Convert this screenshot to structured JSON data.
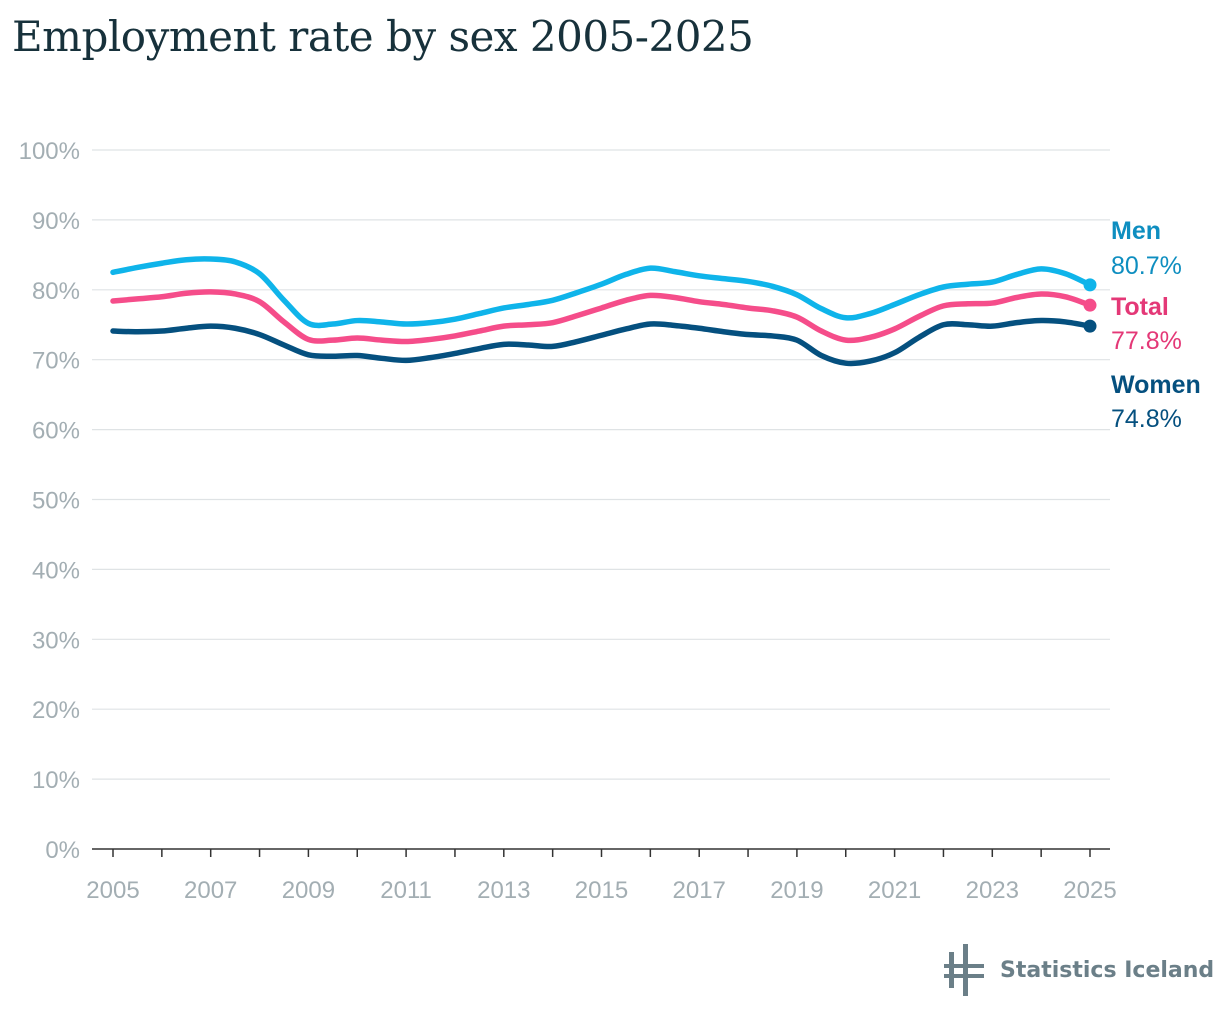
{
  "chart_data": {
    "type": "line",
    "title": "Employment rate by sex 2005-2025",
    "xlabel": "",
    "ylabel": "",
    "xlim": [
      2005,
      2025
    ],
    "ylim": [
      0,
      100
    ],
    "y_ticks": [
      "0%",
      "10%",
      "20%",
      "30%",
      "40%",
      "50%",
      "60%",
      "70%",
      "80%",
      "90%",
      "100%"
    ],
    "x_ticks": [
      "2005",
      "2007",
      "2009",
      "2011",
      "2013",
      "2015",
      "2017",
      "2019",
      "2021",
      "2023",
      "2025"
    ],
    "grid": true,
    "series": [
      {
        "name": "Men",
        "end_label": "80.7%",
        "color": "#0fb4ea",
        "label_color": "#0e8ec0",
        "x": [
          2005,
          2005.5,
          2006,
          2006.5,
          2007,
          2007.5,
          2008,
          2008.5,
          2009,
          2009.5,
          2010,
          2010.5,
          2011,
          2011.5,
          2012,
          2012.5,
          2013,
          2013.5,
          2014,
          2014.5,
          2015,
          2015.5,
          2016,
          2016.5,
          2017,
          2017.5,
          2018,
          2018.5,
          2019,
          2019.5,
          2020,
          2020.5,
          2021,
          2021.5,
          2022,
          2022.5,
          2023,
          2023.5,
          2024,
          2024.5,
          2025
        ],
        "values": [
          82.5,
          83.2,
          83.8,
          84.3,
          84.4,
          84.0,
          82.3,
          78.5,
          75.2,
          75.1,
          75.6,
          75.4,
          75.1,
          75.3,
          75.8,
          76.6,
          77.4,
          77.9,
          78.5,
          79.6,
          80.8,
          82.2,
          83.1,
          82.6,
          82.0,
          81.6,
          81.2,
          80.5,
          79.3,
          77.3,
          76.0,
          76.6,
          77.9,
          79.3,
          80.4,
          80.8,
          81.1,
          82.2,
          83.0,
          82.3,
          80.7
        ]
      },
      {
        "name": "Total",
        "end_label": "77.8%",
        "color": "#f54d8a",
        "label_color": "#e43877",
        "x": [
          2005,
          2005.5,
          2006,
          2006.5,
          2007,
          2007.5,
          2008,
          2008.5,
          2009,
          2009.5,
          2010,
          2010.5,
          2011,
          2011.5,
          2012,
          2012.5,
          2013,
          2013.5,
          2014,
          2014.5,
          2015,
          2015.5,
          2016,
          2016.5,
          2017,
          2017.5,
          2018,
          2018.5,
          2019,
          2019.5,
          2020,
          2020.5,
          2021,
          2021.5,
          2022,
          2022.5,
          2023,
          2023.5,
          2024,
          2024.5,
          2025
        ],
        "values": [
          78.4,
          78.7,
          79.0,
          79.5,
          79.7,
          79.4,
          78.3,
          75.4,
          72.9,
          72.8,
          73.1,
          72.8,
          72.6,
          72.9,
          73.4,
          74.1,
          74.8,
          75.0,
          75.3,
          76.3,
          77.4,
          78.5,
          79.2,
          78.9,
          78.3,
          77.9,
          77.4,
          77.0,
          76.1,
          74.1,
          72.8,
          73.2,
          74.4,
          76.2,
          77.7,
          78.0,
          78.1,
          78.9,
          79.4,
          79.0,
          77.8
        ]
      },
      {
        "name": "Women",
        "end_label": "74.8%",
        "color": "#05507f",
        "label_color": "#05507f",
        "x": [
          2005,
          2005.5,
          2006,
          2006.5,
          2007,
          2007.5,
          2008,
          2008.5,
          2009,
          2009.5,
          2010,
          2010.5,
          2011,
          2011.5,
          2012,
          2012.5,
          2013,
          2013.5,
          2014,
          2014.5,
          2015,
          2015.5,
          2016,
          2016.5,
          2017,
          2017.5,
          2018,
          2018.5,
          2019,
          2019.5,
          2020,
          2020.5,
          2021,
          2021.5,
          2022,
          2022.5,
          2023,
          2023.5,
          2024,
          2024.5,
          2025
        ],
        "values": [
          74.1,
          74.0,
          74.1,
          74.5,
          74.8,
          74.5,
          73.6,
          72.1,
          70.7,
          70.5,
          70.6,
          70.2,
          69.9,
          70.3,
          70.9,
          71.6,
          72.2,
          72.1,
          71.9,
          72.6,
          73.5,
          74.4,
          75.1,
          74.9,
          74.5,
          74.0,
          73.6,
          73.4,
          72.8,
          70.6,
          69.5,
          69.8,
          71.0,
          73.2,
          75.0,
          75.0,
          74.8,
          75.3,
          75.6,
          75.4,
          74.8
        ]
      }
    ]
  },
  "branding": {
    "name": "Statistics Iceland",
    "color": "#6b7f88"
  }
}
